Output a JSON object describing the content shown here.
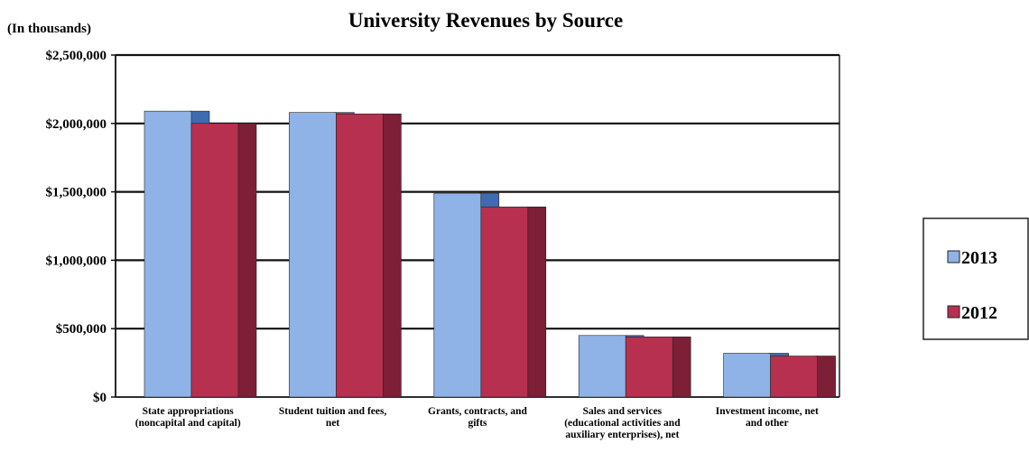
{
  "chart_data": {
    "type": "bar",
    "title": "University Revenues by Source",
    "unit_label": "(In thousands)",
    "categories": [
      [
        "State appropriations",
        "(noncapital and capital)"
      ],
      [
        "Student tuition and fees,",
        "net"
      ],
      [
        "Grants, contracts, and",
        "gifts"
      ],
      [
        "Sales and services",
        "(educational activities and",
        "auxiliary enterprises), net"
      ],
      [
        "Investment income, net",
        "and other"
      ]
    ],
    "series": [
      {
        "name": "2013",
        "color": "#8fb3e6",
        "side_color": "#3f6bb0",
        "values": [
          2090000,
          2080000,
          1490000,
          450000,
          320000
        ]
      },
      {
        "name": "2012",
        "color": "#b8304f",
        "side_color": "#7d1f36",
        "values": [
          2000000,
          2070000,
          1390000,
          440000,
          300000
        ]
      }
    ],
    "ylim": [
      0,
      2500000
    ],
    "yticks": [
      0,
      500000,
      1000000,
      1500000,
      2000000,
      2500000
    ],
    "ytick_labels": [
      "$0",
      "$500,000",
      "$1,000,000",
      "$1,500,000",
      "$2,000,000",
      "$2,500,000"
    ],
    "grid": true,
    "legend_position": "right"
  }
}
